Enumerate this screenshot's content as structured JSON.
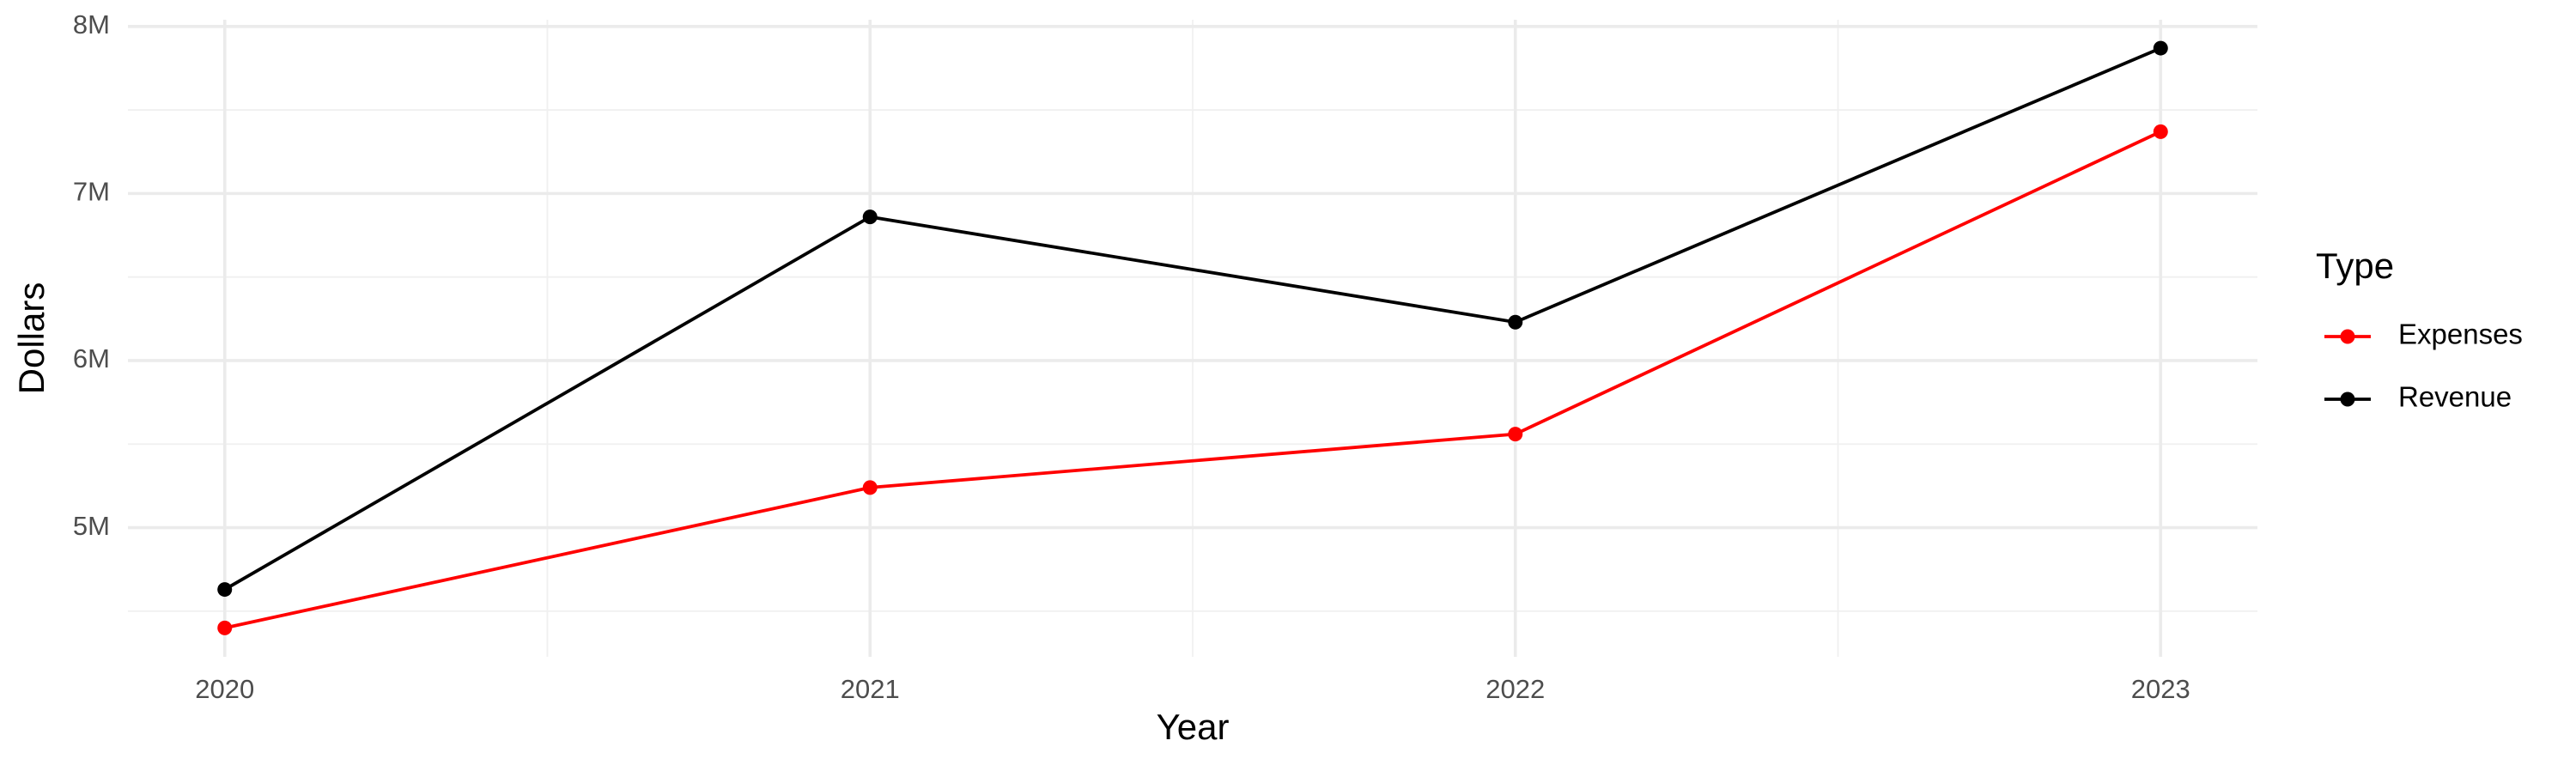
{
  "chart_data": {
    "type": "line",
    "x_label": "Year",
    "y_label": "Dollars",
    "legend_title": "Type",
    "legend_position": "right",
    "grid": true,
    "x": [
      2020,
      2021,
      2022,
      2023
    ],
    "series": [
      {
        "name": "Expenses",
        "color": "#ff0000",
        "values": [
          4400000,
          5240000,
          5560000,
          7370000
        ]
      },
      {
        "name": "Revenue",
        "color": "#000000",
        "values": [
          4630000,
          6860000,
          6230000,
          7870000
        ]
      }
    ],
    "xlim": [
      2019.85,
      2023.15
    ],
    "xticks": [
      2020,
      2021,
      2022,
      2023
    ],
    "ylim": [
      4227000,
      8040000
    ],
    "yticks": [
      {
        "value": 5000000,
        "label": "5M"
      },
      {
        "value": 6000000,
        "label": "6M"
      },
      {
        "value": 7000000,
        "label": "7M"
      },
      {
        "value": 8000000,
        "label": "8M"
      }
    ]
  }
}
